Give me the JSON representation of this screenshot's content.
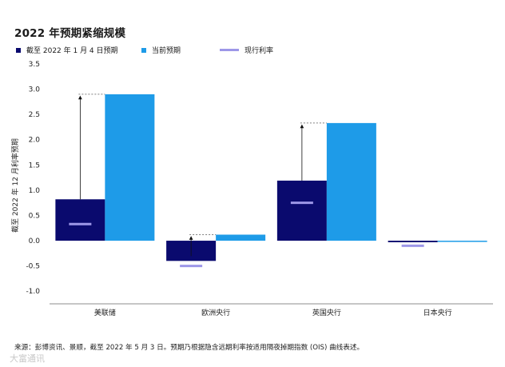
{
  "title": "2022 年预期紧缩规模",
  "legend": {
    "series_a": "截至 2022 年 1 月 4 日预期",
    "series_b": "当前预期",
    "series_c": "现行利率"
  },
  "source_note": "来源：彭博资讯、景顺，截至 2022 年 5 月 3 日。预期乃根据隐含远期利率按适用隔夜掉期指数 (OIS) 曲线表述。",
  "watermark": "大富通讯",
  "colors": {
    "series_a": "#0a0a6e",
    "series_b": "#1e9be8",
    "series_c": "#9d97e8"
  },
  "chart_data": {
    "type": "bar",
    "title": "2022 年预期紧缩规模",
    "ylabel": "截至 2022 年 12 月利率预期",
    "xlabel": "",
    "ylim": [
      -1.25,
      3.5
    ],
    "yticks": [
      3.5,
      3.0,
      2.5,
      2.0,
      1.5,
      1.0,
      0.5,
      0.0,
      -0.5,
      -1.0
    ],
    "ytick_labels": [
      "3.5",
      "3.0",
      "2.5",
      "2.0",
      "1.5",
      "1.0",
      "0.5",
      "0.0",
      "-0.5",
      "-1.0"
    ],
    "categories": [
      "美联储",
      "欧洲央行",
      "英国央行",
      "日本央行"
    ],
    "series": [
      {
        "name": "截至 2022 年 1 月 4 日预期",
        "values": [
          0.82,
          -0.4,
          1.19,
          -0.03
        ]
      },
      {
        "name": "当前预期",
        "values": [
          2.9,
          0.12,
          2.33,
          -0.01
        ]
      }
    ],
    "current_rate": {
      "name": "现行利率",
      "values": [
        0.33,
        -0.5,
        0.75,
        -0.1
      ]
    },
    "grid": false,
    "legend_position": "top"
  }
}
